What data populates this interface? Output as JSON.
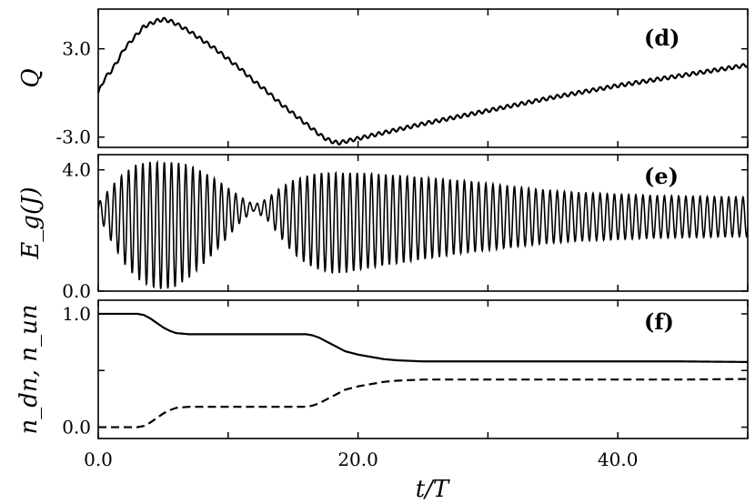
{
  "chart_data": [
    {
      "type": "line",
      "panel_label": "(d)",
      "ylabel": "Q",
      "xlim": [
        0,
        50
      ],
      "ylim": [
        -3.7,
        5.7
      ],
      "yticks": [
        -3.0,
        3.0
      ],
      "ytick_labels": [
        "-3.0",
        "3.0"
      ],
      "series": [
        {
          "x": [
            0,
            0.5,
            1,
            1.5,
            2,
            2.5,
            3,
            3.5,
            4,
            4.5,
            5,
            5.5,
            6,
            7,
            8,
            9,
            10,
            11,
            12,
            13,
            14,
            15,
            16,
            17,
            17.5,
            18,
            18.5,
            19,
            20,
            22,
            25,
            30,
            35,
            40,
            45,
            50
          ],
          "y": [
            0,
            1.0,
            1.5,
            2.2,
            3.0,
            3.5,
            4.0,
            4.5,
            4.7,
            4.9,
            5.0,
            4.9,
            4.7,
            4.2,
            3.6,
            3.0,
            2.3,
            1.6,
            0.8,
            0.1,
            -0.7,
            -1.4,
            -2.1,
            -2.8,
            -3.1,
            -3.3,
            -3.4,
            -3.3,
            -3.1,
            -2.7,
            -2.1,
            -1.2,
            -0.3,
            0.5,
            1.2,
            1.9
          ]
        }
      ]
    },
    {
      "type": "line",
      "panel_label": "(e)",
      "ylabel": "E_g(J)",
      "xlim": [
        0,
        50
      ],
      "ylim": [
        0,
        4.5
      ],
      "yticks": [
        0.0,
        4.0
      ],
      "ytick_labels": [
        "0.0",
        "4.0"
      ],
      "oscillation_period": 0.55,
      "series": [
        {
          "x": [
            0,
            1,
            2,
            3,
            4,
            5,
            6,
            7,
            8,
            9,
            10,
            11,
            12,
            13,
            14,
            15,
            16,
            17,
            18,
            19,
            20,
            22,
            25,
            28,
            31,
            34,
            37,
            40,
            43,
            46,
            50
          ],
          "center": [
            2.7,
            2.55,
            2.4,
            2.3,
            2.2,
            2.15,
            2.2,
            2.3,
            2.4,
            2.5,
            2.6,
            2.7,
            2.75,
            2.7,
            2.6,
            2.45,
            2.35,
            2.3,
            2.25,
            2.25,
            2.3,
            2.35,
            2.4,
            2.45,
            2.45,
            2.45,
            2.45,
            2.45,
            2.45,
            2.45,
            2.45
          ],
          "amplitude": [
            0.2,
            0.9,
            1.5,
            1.9,
            2.05,
            2.1,
            2.05,
            1.85,
            1.55,
            1.2,
            0.8,
            0.4,
            0.1,
            0.35,
            0.8,
            1.2,
            1.45,
            1.6,
            1.65,
            1.65,
            1.6,
            1.5,
            1.35,
            1.2,
            1.05,
            0.9,
            0.8,
            0.75,
            0.7,
            0.68,
            0.65
          ]
        }
      ]
    },
    {
      "type": "line",
      "panel_label": "(f)",
      "ylabel": "n_dn, n_un",
      "xlabel": "t/T",
      "xlim": [
        0,
        50
      ],
      "ylim": [
        -0.1,
        1.12
      ],
      "yticks": [
        0.0,
        0.5,
        1.0
      ],
      "ytick_labels": [
        "0.0",
        "",
        "1.0"
      ],
      "xticks": [
        0,
        10,
        20,
        30,
        40,
        50
      ],
      "xtick_labels": [
        "0.0",
        "",
        "20.0",
        "",
        "40.0",
        ""
      ],
      "series": [
        {
          "style": "solid",
          "x": [
            0,
            3.0,
            3.5,
            4.0,
            4.5,
            5.0,
            5.5,
            6.0,
            7,
            10,
            13,
            16,
            16.5,
            17,
            17.5,
            18,
            18.5,
            19,
            20,
            21,
            22,
            23,
            25,
            30,
            35,
            40,
            45,
            50
          ],
          "y": [
            1.0,
            1.0,
            0.99,
            0.96,
            0.92,
            0.88,
            0.85,
            0.83,
            0.82,
            0.82,
            0.82,
            0.82,
            0.81,
            0.79,
            0.76,
            0.73,
            0.7,
            0.67,
            0.64,
            0.62,
            0.6,
            0.59,
            0.58,
            0.58,
            0.58,
            0.58,
            0.58,
            0.575
          ]
        },
        {
          "style": "dashed",
          "x": [
            0,
            3.0,
            3.5,
            4.0,
            4.5,
            5.0,
            5.5,
            6.0,
            7,
            10,
            13,
            16,
            16.5,
            17,
            17.5,
            18,
            18.5,
            19,
            20,
            21,
            22,
            23,
            25,
            30,
            35,
            40,
            45,
            50
          ],
          "y": [
            0.0,
            0.0,
            0.01,
            0.04,
            0.08,
            0.12,
            0.15,
            0.17,
            0.18,
            0.18,
            0.18,
            0.18,
            0.19,
            0.21,
            0.24,
            0.27,
            0.3,
            0.33,
            0.36,
            0.38,
            0.4,
            0.41,
            0.42,
            0.42,
            0.42,
            0.42,
            0.42,
            0.425
          ]
        }
      ]
    }
  ]
}
